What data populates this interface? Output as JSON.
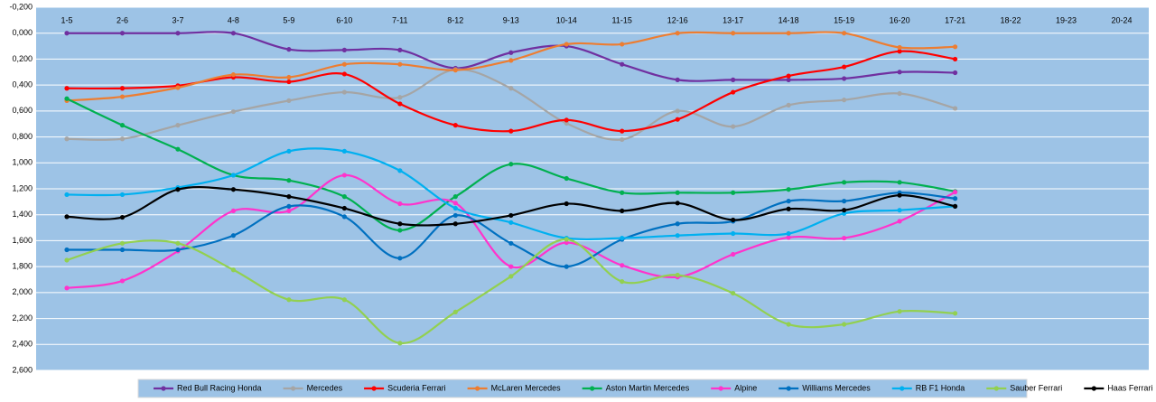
{
  "chart_data": {
    "type": "line",
    "categories": [
      "1-5",
      "2-6",
      "3-7",
      "4-8",
      "5-9",
      "6-10",
      "7-11",
      "8-12",
      "9-13",
      "10-14",
      "11-15",
      "12-16",
      "13-17",
      "14-18",
      "15-19",
      "16-20",
      "17-21",
      "18-22",
      "19-23",
      "20-24"
    ],
    "ylim": [
      -0.2,
      2.6
    ],
    "y_reversed": true,
    "x_axis_position": "top",
    "grid": true,
    "smooth": true,
    "legend": "bottom",
    "yticks": [
      {
        "value": -0.2,
        "label": "-0,200"
      },
      {
        "value": 0,
        "label": "0,000"
      },
      {
        "value": 0.2,
        "label": "0,200"
      },
      {
        "value": 0.4,
        "label": "0,400"
      },
      {
        "value": 0.6,
        "label": "0,600"
      },
      {
        "value": 0.8,
        "label": "0,800"
      },
      {
        "value": 1.0,
        "label": "1,000"
      },
      {
        "value": 1.2,
        "label": "1,200"
      },
      {
        "value": 1.4,
        "label": "1,400"
      },
      {
        "value": 1.6,
        "label": "1,600"
      },
      {
        "value": 1.8,
        "label": "1,800"
      },
      {
        "value": 2.0,
        "label": "2,000"
      },
      {
        "value": 2.2,
        "label": "2,200"
      },
      {
        "value": 2.4,
        "label": "2,400"
      },
      {
        "value": 2.6,
        "label": "2,600"
      }
    ],
    "series": [
      {
        "name": "Red Bull Racing Honda",
        "color": "#7030a0",
        "values": [
          0,
          0,
          0,
          0,
          0.125,
          0.13,
          0.13,
          0.27,
          0.15,
          0.1,
          0.24,
          0.36,
          0.36,
          0.36,
          0.35,
          0.3,
          0.305,
          null,
          null,
          null
        ]
      },
      {
        "name": "Mercedes",
        "color": "#a5a5a5",
        "values": [
          0.815,
          0.815,
          0.71,
          0.605,
          0.52,
          0.455,
          0.495,
          0.28,
          0.425,
          0.695,
          0.82,
          0.6,
          0.72,
          0.555,
          0.515,
          0.465,
          0.58,
          null,
          null,
          null
        ]
      },
      {
        "name": "Scuderia Ferrari",
        "color": "#ff0000",
        "values": [
          0.425,
          0.425,
          0.405,
          0.34,
          0.375,
          0.315,
          0.545,
          0.71,
          0.755,
          0.67,
          0.755,
          0.665,
          0.455,
          0.33,
          0.26,
          0.14,
          0.2,
          null,
          null,
          null
        ]
      },
      {
        "name": "McLaren Mercedes",
        "color": "#ed7d31",
        "values": [
          0.52,
          0.49,
          0.42,
          0.32,
          0.34,
          0.24,
          0.24,
          0.285,
          0.21,
          0.085,
          0.085,
          0,
          0,
          0,
          0,
          0.11,
          0.105,
          null,
          null,
          null
        ]
      },
      {
        "name": "Aston Martin Mercedes",
        "color": "#00b050",
        "values": [
          0.505,
          0.71,
          0.895,
          1.095,
          1.135,
          1.26,
          1.52,
          1.26,
          1.01,
          1.12,
          1.23,
          1.23,
          1.23,
          1.205,
          1.15,
          1.15,
          1.22,
          null,
          null,
          null
        ]
      },
      {
        "name": "Alpine",
        "color": "#ff33cc",
        "values": [
          1.965,
          1.91,
          1.68,
          1.37,
          1.37,
          1.095,
          1.315,
          1.31,
          1.8,
          1.615,
          1.79,
          1.88,
          1.705,
          1.575,
          1.58,
          1.45,
          1.225,
          null,
          null,
          null
        ]
      },
      {
        "name": "Williams Mercedes",
        "color": "#0070c0",
        "values": [
          1.67,
          1.67,
          1.67,
          1.56,
          1.335,
          1.415,
          1.735,
          1.405,
          1.62,
          1.8,
          1.59,
          1.47,
          1.45,
          1.295,
          1.295,
          1.23,
          1.275,
          null,
          null,
          null
        ]
      },
      {
        "name": "RB F1 Honda",
        "color": "#00b0f0",
        "values": [
          1.245,
          1.245,
          1.19,
          1.095,
          0.91,
          0.91,
          1.06,
          1.35,
          1.46,
          1.58,
          1.58,
          1.56,
          1.545,
          1.545,
          1.39,
          1.365,
          1.335,
          null,
          null,
          null
        ]
      },
      {
        "name": "Sauber Ferrari",
        "color": "#92d050",
        "values": [
          1.75,
          1.62,
          1.62,
          1.825,
          2.055,
          2.055,
          2.39,
          2.15,
          1.875,
          1.59,
          1.915,
          1.865,
          2.005,
          2.245,
          2.245,
          2.145,
          2.16,
          null,
          null,
          null
        ]
      },
      {
        "name": "Haas Ferrari",
        "color": "#000000",
        "values": [
          1.415,
          1.42,
          1.205,
          1.205,
          1.26,
          1.35,
          1.47,
          1.47,
          1.405,
          1.315,
          1.37,
          1.31,
          1.44,
          1.355,
          1.365,
          1.25,
          1.335,
          null,
          null,
          null
        ]
      }
    ]
  }
}
